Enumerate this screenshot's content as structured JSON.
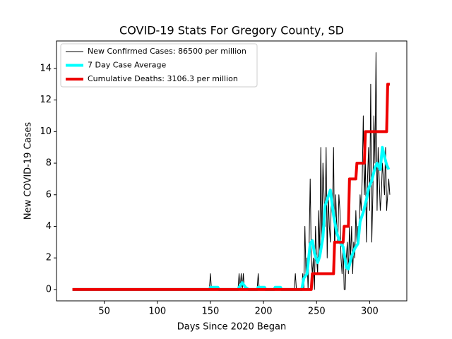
{
  "chart_data": {
    "type": "line",
    "title": "COVID-19 Stats For Gregory County, SD",
    "x_label": "Days Since 2020 Began",
    "y_label": "New COVID-19 Cases",
    "xlim": [
      5,
      335
    ],
    "ylim": [
      -0.72,
      15.74
    ],
    "xticks": [
      50,
      100,
      150,
      200,
      250,
      300
    ],
    "yticks": [
      0,
      2,
      4,
      6,
      8,
      10,
      12,
      14
    ],
    "legend": "upper left",
    "series": [
      {
        "name": "New Confirmed Cases: 86500 per million",
        "color": "#000000",
        "width": 1,
        "x": [
          20,
          149,
          150,
          151,
          176,
          177,
          178,
          179,
          180,
          181,
          182,
          194,
          195,
          196,
          229,
          230,
          231,
          236,
          237,
          238,
          239,
          240,
          241,
          242,
          243,
          244,
          245,
          246,
          247,
          248,
          249,
          250,
          251,
          252,
          253,
          254,
          255,
          256,
          257,
          258,
          259,
          260,
          261,
          262,
          263,
          264,
          265,
          266,
          267,
          268,
          269,
          270,
          271,
          272,
          273,
          274,
          275,
          276,
          277,
          278,
          279,
          280,
          281,
          282,
          283,
          284,
          285,
          286,
          287,
          288,
          289,
          290,
          291,
          292,
          293,
          294,
          295,
          296,
          297,
          298,
          299,
          300,
          301,
          302,
          303,
          304,
          305,
          306,
          307,
          308,
          309,
          310,
          311,
          312,
          313,
          314,
          315,
          316,
          317,
          318,
          319
        ],
        "values": [
          0,
          0,
          1,
          0,
          0,
          1,
          0,
          1,
          0,
          1,
          0,
          0,
          1,
          0,
          0,
          1,
          0,
          0,
          1,
          0,
          4,
          1,
          2,
          0,
          3,
          7,
          2,
          1,
          2,
          0,
          4,
          2,
          1,
          5,
          2,
          9,
          3,
          8,
          6,
          4,
          9,
          2,
          6,
          4,
          3,
          6,
          5,
          9,
          2,
          6,
          4,
          3,
          6,
          5,
          2,
          1,
          3,
          0,
          0,
          2,
          3,
          1,
          4,
          2,
          4,
          1,
          3,
          2,
          5,
          3,
          4,
          3,
          6,
          5,
          7,
          11,
          6,
          8,
          3,
          7,
          9,
          5,
          13,
          3,
          6,
          11,
          8,
          15,
          5,
          9,
          7,
          5,
          6,
          8,
          7,
          6,
          9,
          5,
          6,
          7,
          6
        ],
        "unused": null
      },
      {
        "name": "7 Day Case Average",
        "color": "#00ffff",
        "width": 4,
        "x": [
          20,
          149,
          150,
          157,
          158,
          176,
          177,
          180,
          183,
          186,
          194,
          195,
          201,
          202,
          210,
          211,
          216,
          217,
          236,
          238,
          241,
          244,
          246,
          248,
          251,
          253,
          256,
          258,
          261,
          263,
          266,
          269,
          272,
          275,
          278,
          280,
          283,
          286,
          289,
          291,
          294,
          297,
          299,
          302,
          305,
          307,
          310,
          312,
          314,
          316,
          318
        ],
        "values": [
          0,
          0,
          0.14,
          0.14,
          0,
          0,
          0.14,
          0.43,
          0.14,
          0,
          0,
          0.14,
          0.14,
          0,
          0,
          0.14,
          0.14,
          0,
          0,
          0.71,
          1.0,
          2.9,
          3.1,
          2.3,
          1.7,
          2.1,
          3.3,
          5.3,
          5.9,
          6.3,
          4.7,
          3.6,
          3.0,
          2.7,
          1.4,
          1.3,
          2.1,
          2.6,
          2.9,
          4.3,
          4.9,
          5.7,
          6.4,
          6.9,
          7.7,
          8.0,
          7.6,
          9.0,
          8.4,
          7.9,
          7.6
        ]
      },
      {
        "name": "Cumulative Deaths: 3106.3 per million",
        "color": "#ee0000",
        "width": 4,
        "x": [
          20,
          245,
          246,
          266,
          267,
          275,
          276,
          280,
          281,
          287,
          288,
          295,
          296,
          316,
          317,
          319
        ],
        "values": [
          0,
          0,
          1,
          1,
          3,
          3,
          4,
          4,
          7,
          7,
          8,
          8,
          10,
          10,
          13,
          13
        ]
      }
    ]
  }
}
